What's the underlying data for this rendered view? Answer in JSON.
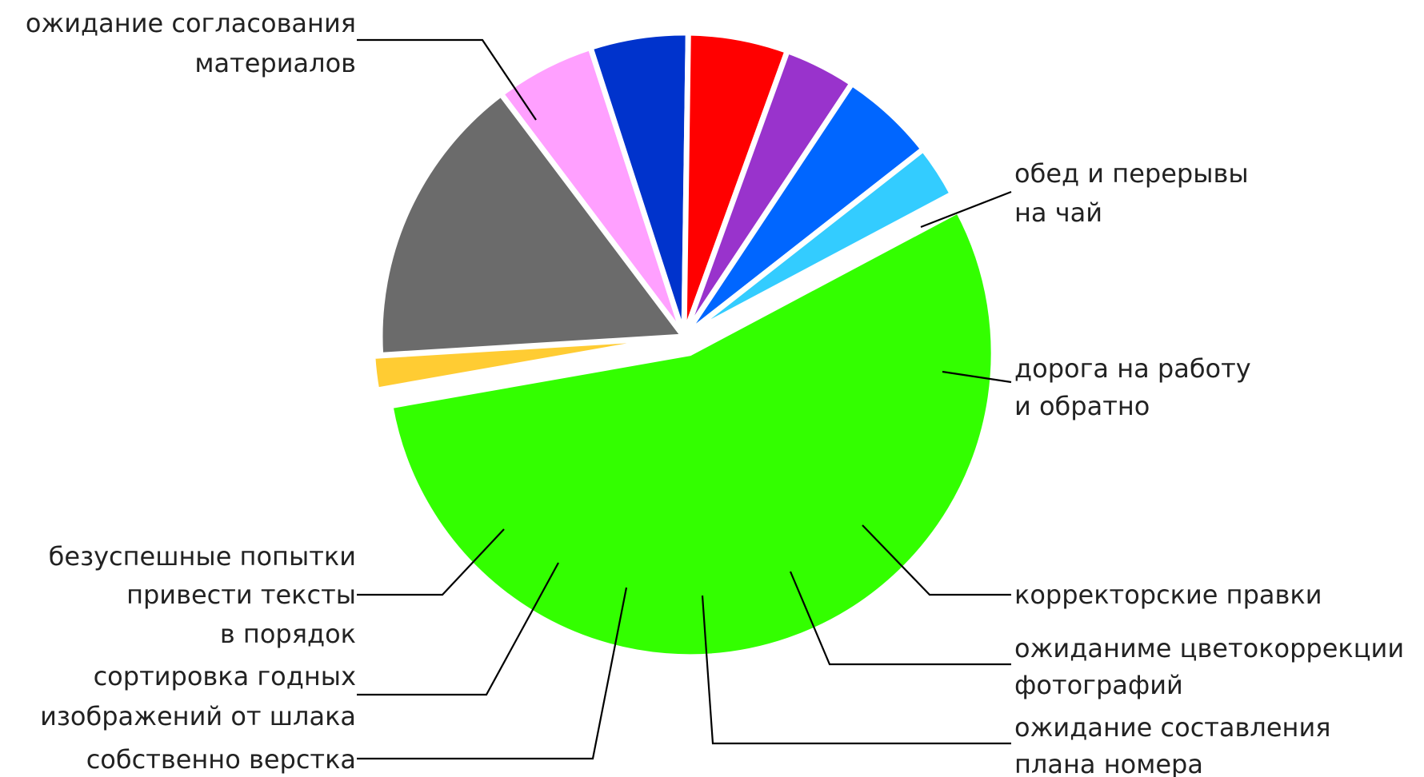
{
  "chart_data": {
    "type": "pie",
    "title": "",
    "slices": [
      {
        "label": [
          "ожидание согласования",
          "материалов"
        ],
        "value": 55,
        "color": "#33ff00"
      },
      {
        "label": [
          "обед и перерывы",
          "на чай"
        ],
        "value": 1.8,
        "color": "#ffcc33"
      },
      {
        "label": [
          "дорога на работу",
          "и обратно"
        ],
        "value": 15.7,
        "color": "#6b6b6b"
      },
      {
        "label": [
          "корректорские правки"
        ],
        "value": 5.3,
        "color": "#ffa0ff"
      },
      {
        "label": [
          "ожиданиме цветокоррекции",
          "фотографий"
        ],
        "value": 5.2,
        "color": "#0033cc"
      },
      {
        "label": [
          "ожидание составления",
          "плана номера"
        ],
        "value": 5.3,
        "color": "#ff0000"
      },
      {
        "label": [
          "собственно верстка"
        ],
        "value": 3.8,
        "color": "#9933cc"
      },
      {
        "label": [
          "сортировка годных",
          "изображений от шлака"
        ],
        "value": 5.1,
        "color": "#0066ff"
      },
      {
        "label": [
          "безуспешные попытки",
          "привести тексты",
          "в порядок"
        ],
        "value": 2.8,
        "color": "#33ccff"
      }
    ]
  }
}
